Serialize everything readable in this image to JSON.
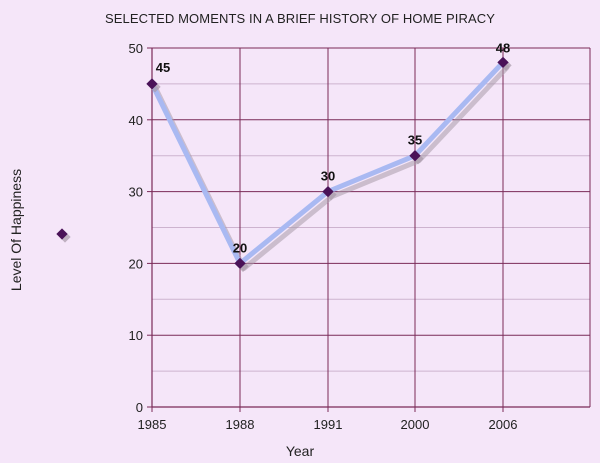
{
  "colors": {
    "background": "#f5e6f9",
    "grid": "#7a2a58",
    "minor_grid": "#cdb3cf",
    "line": "#a9b9f2",
    "shadow": "#a89aaa",
    "marker": "#4a1258"
  },
  "chart_data": {
    "type": "line",
    "title": "SELECTED MOMENTS IN A BRIEF HISTORY OF HOME PIRACY",
    "xlabel": "Year",
    "ylabel": "Level Of Happiness",
    "categories": [
      "1985",
      "1988",
      "1991",
      "2000",
      "2006"
    ],
    "series": [
      {
        "values": [
          45,
          20,
          30,
          35,
          48
        ]
      }
    ],
    "data_labels": [
      "45",
      "20",
      "30",
      "35",
      "48"
    ],
    "ylim": [
      0,
      50
    ],
    "yticks": [
      "0",
      "10",
      "20",
      "30",
      "40",
      "50"
    ],
    "grid": true,
    "legend": {
      "position": "left",
      "marker": "diamond"
    }
  }
}
